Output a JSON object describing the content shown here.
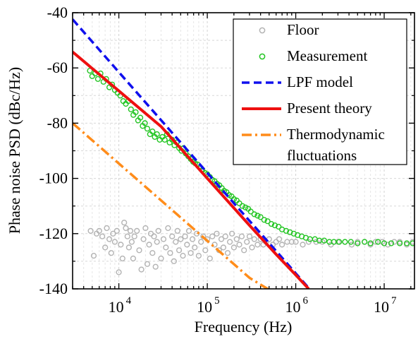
{
  "chart_data": {
    "type": "line",
    "title": "",
    "xlabel": "Frequency (Hz)",
    "ylabel": "Phase noise PSD (dBc/Hz)",
    "x_scale": "log",
    "xlim": [
      3000,
      22000000
    ],
    "ylim": [
      -140,
      -40
    ],
    "yticks": [
      "-140",
      "-120",
      "-100",
      "-80",
      "-60",
      "-40"
    ],
    "xticks": [
      {
        "value": 10000,
        "base": "10",
        "exp": "4"
      },
      {
        "value": 100000,
        "base": "10",
        "exp": "5"
      },
      {
        "value": 1000000,
        "base": "10",
        "exp": "6"
      },
      {
        "value": 10000000,
        "base": "10",
        "exp": "7"
      }
    ],
    "grid": true,
    "legend_position": "top-right",
    "series": [
      {
        "name": "Floor",
        "style": "open-circle",
        "color": "#b3b3b3",
        "points": [
          [
            4800,
            -119
          ],
          [
            5200,
            -128
          ],
          [
            5600,
            -120
          ],
          [
            6000,
            -119
          ],
          [
            6500,
            -121
          ],
          [
            7000,
            -125
          ],
          [
            7300,
            -118
          ],
          [
            7800,
            -122
          ],
          [
            8200,
            -127
          ],
          [
            8600,
            -120
          ],
          [
            9000,
            -123
          ],
          [
            9500,
            -119
          ],
          [
            10000,
            -134
          ],
          [
            10500,
            -124
          ],
          [
            11000,
            -129
          ],
          [
            11500,
            -116
          ],
          [
            12000,
            -118
          ],
          [
            12500,
            -121
          ],
          [
            13000,
            -125
          ],
          [
            13500,
            -119
          ],
          [
            14000,
            -123
          ],
          [
            14500,
            -129
          ],
          [
            15000,
            -121
          ],
          [
            16000,
            -119
          ],
          [
            17000,
            -126
          ],
          [
            18000,
            -133
          ],
          [
            19000,
            -122
          ],
          [
            20000,
            -118
          ],
          [
            21000,
            -131
          ],
          [
            22000,
            -124
          ],
          [
            23000,
            -120
          ],
          [
            24000,
            -127
          ],
          [
            25000,
            -121
          ],
          [
            26000,
            -132
          ],
          [
            27000,
            -123
          ],
          [
            28000,
            -119
          ],
          [
            30000,
            -129
          ],
          [
            32000,
            -122
          ],
          [
            34000,
            -125
          ],
          [
            36000,
            -118
          ],
          [
            38000,
            -127
          ],
          [
            40000,
            -121
          ],
          [
            42000,
            -130
          ],
          [
            44000,
            -123
          ],
          [
            46000,
            -119
          ],
          [
            48000,
            -126
          ],
          [
            50000,
            -122
          ],
          [
            53000,
            -128
          ],
          [
            56000,
            -121
          ],
          [
            59000,
            -124
          ],
          [
            62000,
            -119
          ],
          [
            65000,
            -127
          ],
          [
            68000,
            -122
          ],
          [
            72000,
            -125
          ],
          [
            76000,
            -120
          ],
          [
            80000,
            -128
          ],
          [
            85000,
            -123
          ],
          [
            90000,
            -121
          ],
          [
            95000,
            -126
          ],
          [
            100000,
            -122
          ],
          [
            107000,
            -129
          ],
          [
            114000,
            -121
          ],
          [
            121000,
            -124
          ],
          [
            128000,
            -120
          ],
          [
            136000,
            -126
          ],
          [
            144000,
            -122
          ],
          [
            152000,
            -125
          ],
          [
            160000,
            -121
          ],
          [
            170000,
            -127
          ],
          [
            180000,
            -123
          ],
          [
            190000,
            -120
          ],
          [
            200000,
            -125
          ],
          [
            215000,
            -122
          ],
          [
            230000,
            -124
          ],
          [
            245000,
            -121
          ],
          [
            260000,
            -126
          ],
          [
            280000,
            -123
          ],
          [
            300000,
            -121
          ],
          [
            320000,
            -125
          ],
          [
            340000,
            -122
          ],
          [
            370000,
            -124
          ],
          [
            400000,
            -122
          ],
          [
            430000,
            -124
          ],
          [
            460000,
            -123
          ],
          [
            500000,
            -122
          ],
          [
            550000,
            -124
          ],
          [
            600000,
            -123
          ],
          [
            650000,
            -122
          ],
          [
            700000,
            -124
          ],
          [
            800000,
            -123
          ],
          [
            900000,
            -123
          ],
          [
            1000000,
            -123
          ],
          [
            1200000,
            -124
          ],
          [
            1400000,
            -123
          ],
          [
            1700000,
            -123
          ],
          [
            2000000,
            -123
          ],
          [
            2500000,
            -124
          ],
          [
            3000000,
            -123
          ],
          [
            3600000,
            -123
          ],
          [
            4300000,
            -124
          ],
          [
            5000000,
            -123
          ],
          [
            6000000,
            -123
          ],
          [
            7000000,
            -124
          ],
          [
            8000000,
            -123
          ],
          [
            9500000,
            -123
          ],
          [
            11000000,
            -124
          ],
          [
            13000000,
            -123
          ],
          [
            15000000,
            -123
          ],
          [
            18000000,
            -124
          ],
          [
            21000000,
            -123
          ]
        ]
      },
      {
        "name": "Measurement",
        "style": "open-circle",
        "color": "#22c522",
        "points": [
          [
            4700,
            -61
          ],
          [
            5000,
            -63
          ],
          [
            5400,
            -62
          ],
          [
            5800,
            -64
          ],
          [
            6200,
            -62
          ],
          [
            6700,
            -65
          ],
          [
            7200,
            -64
          ],
          [
            7800,
            -67
          ],
          [
            8400,
            -66
          ],
          [
            9000,
            -68
          ],
          [
            9700,
            -69
          ],
          [
            10400,
            -70
          ],
          [
            11200,
            -72
          ],
          [
            12000,
            -73
          ],
          [
            12800,
            -72
          ],
          [
            13700,
            -75
          ],
          [
            14600,
            -77
          ],
          [
            15500,
            -76
          ],
          [
            16500,
            -79
          ],
          [
            17500,
            -78
          ],
          [
            18600,
            -81
          ],
          [
            19700,
            -80
          ],
          [
            21000,
            -82
          ],
          [
            22500,
            -84
          ],
          [
            24000,
            -83
          ],
          [
            25500,
            -85
          ],
          [
            27000,
            -84
          ],
          [
            29000,
            -86
          ],
          [
            31000,
            -85
          ],
          [
            33000,
            -86
          ],
          [
            35000,
            -84
          ],
          [
            37500,
            -87
          ],
          [
            40000,
            -86
          ],
          [
            42500,
            -88
          ],
          [
            45000,
            -87
          ],
          [
            48000,
            -89
          ],
          [
            51000,
            -90
          ],
          [
            54000,
            -89
          ],
          [
            57000,
            -91
          ],
          [
            61000,
            -92
          ],
          [
            65000,
            -93
          ],
          [
            69000,
            -94
          ],
          [
            73000,
            -94.5
          ],
          [
            78000,
            -95
          ],
          [
            83000,
            -96
          ],
          [
            88000,
            -97
          ],
          [
            94000,
            -98
          ],
          [
            100000,
            -98.5
          ],
          [
            107000,
            -99.5
          ],
          [
            114000,
            -100.5
          ],
          [
            121000,
            -101
          ],
          [
            129000,
            -102
          ],
          [
            137000,
            -102.5
          ],
          [
            146000,
            -103.5
          ],
          [
            155000,
            -104.5
          ],
          [
            165000,
            -105
          ],
          [
            176000,
            -106
          ],
          [
            188000,
            -106.5
          ],
          [
            200000,
            -107.5
          ],
          [
            215000,
            -108
          ],
          [
            230000,
            -109
          ],
          [
            250000,
            -110
          ],
          [
            270000,
            -110.5
          ],
          [
            290000,
            -111
          ],
          [
            310000,
            -112
          ],
          [
            340000,
            -113
          ],
          [
            370000,
            -113.5
          ],
          [
            400000,
            -114
          ],
          [
            440000,
            -115
          ],
          [
            480000,
            -115.5
          ],
          [
            530000,
            -116.5
          ],
          [
            580000,
            -117
          ],
          [
            640000,
            -117.5
          ],
          [
            700000,
            -118.5
          ],
          [
            780000,
            -119
          ],
          [
            860000,
            -119.5
          ],
          [
            950000,
            -120
          ],
          [
            1050000,
            -120.5
          ],
          [
            1170000,
            -121
          ],
          [
            1300000,
            -121.5
          ],
          [
            1450000,
            -122
          ],
          [
            1650000,
            -122
          ],
          [
            1850000,
            -122.5
          ],
          [
            2100000,
            -122.5
          ],
          [
            2400000,
            -123
          ],
          [
            2700000,
            -123
          ],
          [
            3100000,
            -123
          ],
          [
            3600000,
            -123
          ],
          [
            4200000,
            -123
          ],
          [
            5000000,
            -123.5
          ],
          [
            6000000,
            -123
          ],
          [
            7000000,
            -123.5
          ],
          [
            8500000,
            -123
          ],
          [
            10000000,
            -123.5
          ],
          [
            12000000,
            -123.5
          ],
          [
            15000000,
            -123.5
          ],
          [
            18000000,
            -123.5
          ],
          [
            21000000,
            -123.5
          ]
        ]
      },
      {
        "name": "LPF model",
        "style": "dashed",
        "color": "#1010ee",
        "points": [
          [
            3000,
            -42.4
          ],
          [
            10000,
            -61.5
          ],
          [
            30000,
            -78.9
          ],
          [
            100000,
            -98
          ],
          [
            200000,
            -109
          ],
          [
            500000,
            -123.4
          ],
          [
            1000000,
            -134.4
          ],
          [
            1500000,
            -140.8
          ]
        ]
      },
      {
        "name": "Present theory",
        "style": "solid",
        "color": "#ee1010",
        "points": [
          [
            3000,
            -54.2
          ],
          [
            10000,
            -68.3
          ],
          [
            30000,
            -81.2
          ],
          [
            100000,
            -100
          ],
          [
            300000,
            -117
          ],
          [
            600000,
            -127.5
          ],
          [
            1000000,
            -135
          ],
          [
            1400000,
            -140
          ]
        ]
      },
      {
        "name": "Thermodynamic fluctuations",
        "style": "dashdot",
        "color": "#ff8c1a",
        "points": [
          [
            3000,
            -80
          ],
          [
            10000,
            -94.6
          ],
          [
            100000,
            -122.6
          ],
          [
            300000,
            -136
          ],
          [
            600000,
            -141.9
          ]
        ]
      }
    ],
    "legend": [
      {
        "lines": [
          "Floor"
        ],
        "series_index": 0
      },
      {
        "lines": [
          "Measurement"
        ],
        "series_index": 1
      },
      {
        "lines": [
          "LPF model"
        ],
        "series_index": 2
      },
      {
        "lines": [
          "Present theory"
        ],
        "series_index": 3
      },
      {
        "lines": [
          "Thermodynamic",
          "fluctuations"
        ],
        "series_index": 4
      }
    ]
  }
}
